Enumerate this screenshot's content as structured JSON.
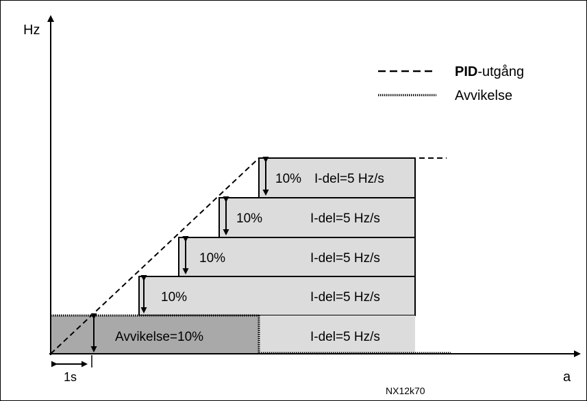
{
  "axes": {
    "y_label": "Hz",
    "x_label": "a",
    "time_marker": "1s"
  },
  "legend": {
    "pid_bold": "PID",
    "pid_rest": "-utgång",
    "deviation": "Avvikelse"
  },
  "steps": [
    {
      "pct": "10%",
      "idel": "I-del=5 Hz/s"
    },
    {
      "pct": "10%",
      "idel": "I-del=5 Hz/s"
    },
    {
      "pct": "10%",
      "idel": "I-del=5 Hz/s"
    },
    {
      "pct": "10%",
      "idel": "I-del=5 Hz/s"
    }
  ],
  "base": {
    "deviation_label": "Avvikelse=10%",
    "idel": "I-del=5 Hz/s"
  },
  "figure_code": "NX12k70",
  "colors": {
    "step_fill": "#dcdcdc",
    "deviation_fill": "#a9a9a9",
    "line": "#000000"
  }
}
